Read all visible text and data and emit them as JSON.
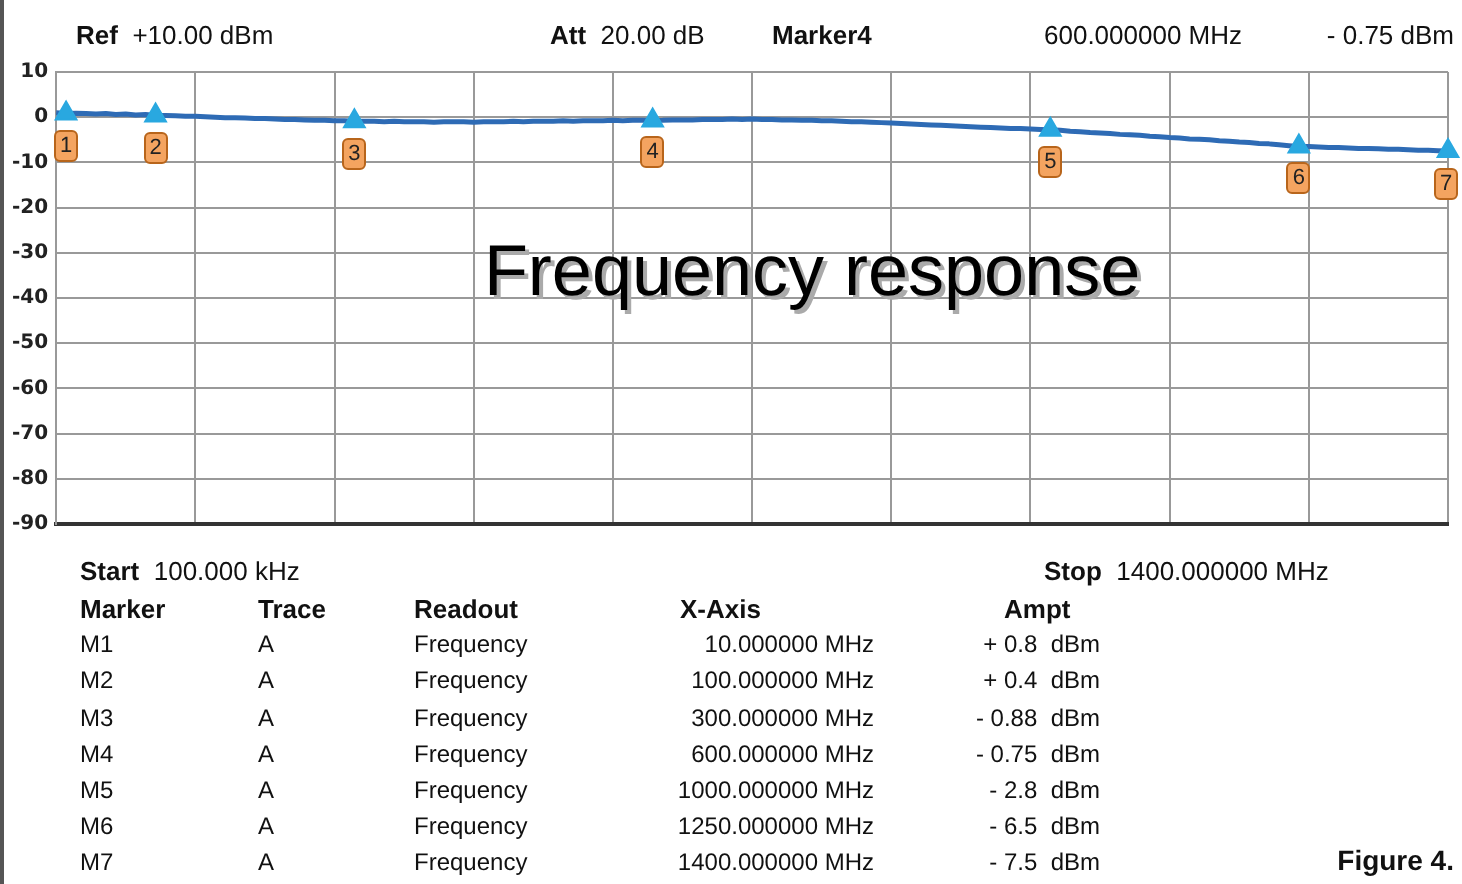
{
  "chart_data": {
    "type": "line",
    "title": "Frequency response",
    "categories": [
      null,
      null,
      null,
      null,
      null,
      null,
      null,
      null,
      null,
      null,
      null,
      null,
      null,
      null,
      null,
      null,
      null,
      null,
      null,
      null,
      null,
      null,
      null,
      null,
      null,
      null,
      null,
      null,
      null,
      null,
      null,
      null,
      null,
      null,
      null,
      null,
      null,
      null,
      null,
      null,
      null,
      null,
      null,
      null,
      null,
      null,
      null,
      null,
      null,
      null,
      null,
      null,
      null,
      null,
      null,
      null,
      null,
      null,
      null,
      null,
      null,
      null,
      null,
      null,
      null,
      null,
      null,
      null,
      null,
      null,
      null,
      null,
      null,
      null,
      null,
      null,
      null,
      null,
      null,
      null,
      null,
      null,
      null,
      null,
      null,
      null,
      null,
      null,
      null,
      null,
      null,
      null,
      null,
      null,
      null,
      null,
      null,
      null,
      null,
      null,
      null,
      null,
      null,
      null,
      null,
      null,
      null,
      null,
      null,
      null,
      null,
      null,
      null,
      null,
      null,
      null,
      null,
      null,
      null,
      null,
      null,
      null,
      null,
      null,
      null,
      null,
      null,
      null,
      null,
      null,
      null,
      null,
      null,
      null,
      null,
      null,
      null,
      null,
      null,
      null,
      null
    ],
    "ylim": [
      -90,
      10
    ],
    "yticks": [
      -90,
      -80,
      -70,
      -60,
      -50,
      -40,
      -30,
      -20,
      -10,
      0,
      10
    ],
    "tick_labels": "y",
    "grid": true,
    "legend": false,
    "series": [
      {
        "color": "#2e6bb5",
        "marker": "none",
        "values": [
          1.0,
          0.8,
          0.9,
          0.8,
          0.7,
          0.8,
          0.6,
          0.7,
          0.5,
          0.6,
          0.4,
          0.4,
          0.3,
          0.2,
          0.2,
          0.1,
          0,
          -0.1,
          -0.1,
          -0.2,
          -0.3,
          -0.3,
          -0.4,
          -0.5,
          -0.5,
          -0.6,
          -0.7,
          -0.7,
          -0.8,
          -0.8,
          -0.88,
          -0.9,
          -0.9,
          -1,
          -0.9,
          -1,
          -1,
          -1,
          -1.1,
          -1,
          -1,
          -1,
          -1.1,
          -1,
          -1,
          -1,
          -0.9,
          -1,
          -0.9,
          -0.9,
          -0.9,
          -0.8,
          -0.9,
          -0.8,
          -0.8,
          -0.8,
          -0.7,
          -0.8,
          -0.7,
          -0.7,
          -0.75,
          -0.7,
          -0.6,
          -0.6,
          -0.6,
          -0.5,
          -0.5,
          -0.5,
          -0.4,
          -0.5,
          -0.4,
          -0.5,
          -0.5,
          -0.6,
          -0.6,
          -0.7,
          -0.7,
          -0.8,
          -0.8,
          -0.9,
          -1,
          -1,
          -1.1,
          -1.2,
          -1.3,
          -1.4,
          -1.5,
          -1.6,
          -1.7,
          -1.8,
          -1.9,
          -2,
          -2.1,
          -2.2,
          -2.3,
          -2.4,
          -2.5,
          -2.5,
          -2.6,
          -2.7,
          -2.8,
          -2.9,
          -3.1,
          -3.2,
          -3.4,
          -3.5,
          -3.6,
          -3.8,
          -3.9,
          -4,
          -4.2,
          -4.3,
          -4.5,
          -4.6,
          -4.8,
          -4.9,
          -5,
          -5.2,
          -5.3,
          -5.5,
          -5.6,
          -5.8,
          -5.9,
          -6.1,
          -6.3,
          -6.5,
          -6.5,
          -6.6,
          -6.7,
          -6.7,
          -6.8,
          -6.9,
          -6.9,
          -7,
          -7.1,
          -7.1,
          -7.2,
          -7.3,
          -7.3,
          -7.4,
          -7.5
        ]
      },
      {
        "type": "scatter",
        "color": "#29a8e0",
        "marker": "triangle",
        "values": [
          null,
          0.8,
          null,
          null,
          null,
          null,
          null,
          null,
          null,
          null,
          0.4,
          null,
          null,
          null,
          null,
          null,
          null,
          null,
          null,
          null,
          null,
          null,
          null,
          null,
          null,
          null,
          null,
          null,
          null,
          null,
          -0.88,
          null,
          null,
          null,
          null,
          null,
          null,
          null,
          null,
          null,
          null,
          null,
          null,
          null,
          null,
          null,
          null,
          null,
          null,
          null,
          null,
          null,
          null,
          null,
          null,
          null,
          null,
          null,
          null,
          null,
          -0.75,
          null,
          null,
          null,
          null,
          null,
          null,
          null,
          null,
          null,
          null,
          null,
          null,
          null,
          null,
          null,
          null,
          null,
          null,
          null,
          null,
          null,
          null,
          null,
          null,
          null,
          null,
          null,
          null,
          null,
          null,
          null,
          null,
          null,
          null,
          null,
          null,
          null,
          null,
          null,
          -2.8,
          null,
          null,
          null,
          null,
          null,
          null,
          null,
          null,
          null,
          null,
          null,
          null,
          null,
          null,
          null,
          null,
          null,
          null,
          null,
          null,
          null,
          null,
          null,
          null,
          -6.5,
          null,
          null,
          null,
          null,
          null,
          null,
          null,
          null,
          null,
          null,
          null,
          null,
          null,
          null,
          -7.5
        ]
      }
    ],
    "annotations": [
      {
        "text": "1",
        "y": 0.8
      },
      {
        "text": "2",
        "y": 0.4
      },
      {
        "text": "3",
        "y": -0.88
      },
      {
        "text": "4",
        "y": -0.75
      },
      {
        "text": "5",
        "y": -2.8
      },
      {
        "text": "6",
        "y": -6.5
      },
      {
        "text": "7",
        "y": -7.5
      },
      "Ref +10.00 dBm",
      "Att 20.00 dB",
      "Marker4",
      "600.000000 MHz",
      "- 0.75 dBm",
      "Start 100.000 kHz",
      "Stop 1400.000000 MHz",
      "Marker",
      "Trace",
      "Readout",
      "X-Axis",
      "Ampt",
      "M1",
      "A",
      "Frequency",
      "10.000000 MHz",
      "+ 0.8  dBm",
      "M2",
      "A",
      "Frequency",
      "100.000000 MHz",
      "+ 0.4  dBm",
      "M3",
      "A",
      "Frequency",
      "300.000000 MHz",
      "- 0.88  dBm",
      "M4",
      "A",
      "Frequency",
      "600.000000 MHz",
      "- 0.75  dBm",
      "M5",
      "A",
      "Frequency",
      "1000.000000 MHz",
      "- 2.8  dBm",
      "M6",
      "A",
      "Frequency",
      "1250.000000 MHz",
      "- 6.5  dBm",
      "M7",
      "A",
      "Frequency",
      "1400.000000 MHz",
      "- 7.5  dBm",
      "Figure 4."
    ]
  }
}
